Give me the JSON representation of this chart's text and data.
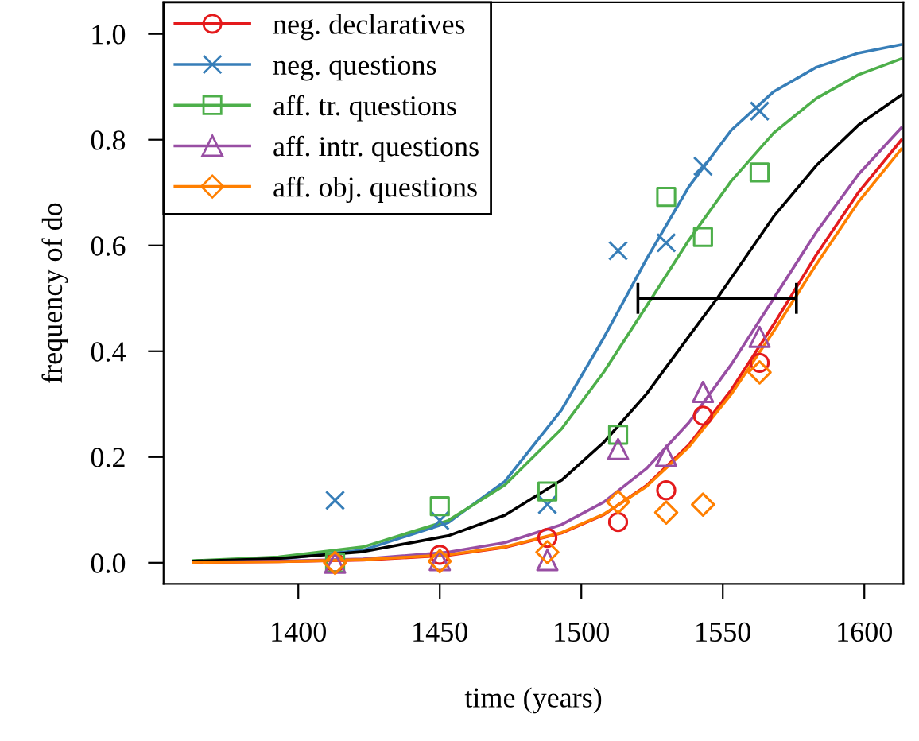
{
  "chart_data": {
    "type": "scatter",
    "xlabel": "time (years)",
    "ylabel": "frequency of do",
    "xlim": [
      1352.4,
      1613.8
    ],
    "ylim": [
      -0.04,
      1.06
    ],
    "xticks": [
      1400,
      1450,
      1500,
      1550,
      1600
    ],
    "yticks": [
      {
        "value": 0,
        "label": "0.0"
      },
      {
        "value": 0.2,
        "label": "0.2"
      },
      {
        "value": 0.4,
        "label": "0.4"
      },
      {
        "value": 0.6,
        "label": "0.6"
      },
      {
        "value": 0.8,
        "label": "0.8"
      },
      {
        "value": 1.0,
        "label": "1.0"
      }
    ],
    "grid": false,
    "legend": "top left",
    "series": [
      {
        "type": "line",
        "color": "#377eb8",
        "marker": "none",
        "x": [
          1363,
          1393,
          1423,
          1453,
          1473,
          1493,
          1508,
          1523,
          1538,
          1553,
          1568,
          1583,
          1598,
          1613
        ],
        "values": [
          0.002,
          0.007,
          0.024,
          0.076,
          0.154,
          0.289,
          0.426,
          0.574,
          0.711,
          0.818,
          0.891,
          0.937,
          0.964,
          0.98
        ]
      },
      {
        "type": "line",
        "color": "#4daf4a",
        "marker": "none",
        "x": [
          1363,
          1393,
          1423,
          1453,
          1473,
          1493,
          1508,
          1523,
          1538,
          1553,
          1568,
          1583,
          1598,
          1613
        ],
        "values": [
          0.004,
          0.011,
          0.03,
          0.08,
          0.147,
          0.253,
          0.361,
          0.485,
          0.61,
          0.722,
          0.813,
          0.878,
          0.923,
          0.953
        ]
      },
      {
        "type": "line",
        "color": "#000000",
        "marker": "none",
        "x": [
          1363,
          1393,
          1423,
          1453,
          1473,
          1493,
          1508,
          1523,
          1538,
          1548,
          1568,
          1583,
          1598,
          1613
        ],
        "values": [
          0.003,
          0.008,
          0.021,
          0.051,
          0.09,
          0.156,
          0.228,
          0.319,
          0.428,
          0.5,
          0.655,
          0.751,
          0.828,
          0.884
        ],
        "xerrors": [
          null,
          null,
          null,
          null,
          null,
          null,
          null,
          null,
          null,
          [
            1520,
            1576
          ],
          null,
          null,
          null,
          null
        ]
      },
      {
        "type": "line",
        "color": "#984ea3",
        "marker": "none",
        "x": [
          1363,
          1393,
          1423,
          1453,
          1473,
          1493,
          1508,
          1523,
          1538,
          1553,
          1568,
          1583,
          1598,
          1613
        ],
        "values": [
          0.001,
          0.003,
          0.007,
          0.02,
          0.038,
          0.072,
          0.115,
          0.178,
          0.265,
          0.375,
          0.5,
          0.625,
          0.735,
          0.822
        ]
      },
      {
        "type": "line",
        "color": "#e41a1c",
        "marker": "none",
        "x": [
          1363,
          1393,
          1423,
          1453,
          1473,
          1493,
          1508,
          1523,
          1538,
          1553,
          1568,
          1583,
          1598,
          1613
        ],
        "values": [
          0.001,
          0.002,
          0.005,
          0.014,
          0.029,
          0.056,
          0.091,
          0.146,
          0.223,
          0.327,
          0.451,
          0.582,
          0.701,
          0.799
        ]
      },
      {
        "type": "line",
        "color": "#ff7f00",
        "marker": "none",
        "x": [
          1363,
          1393,
          1423,
          1453,
          1473,
          1493,
          1508,
          1523,
          1538,
          1553,
          1568,
          1583,
          1598,
          1613
        ],
        "values": [
          0.001,
          0.002,
          0.006,
          0.015,
          0.03,
          0.057,
          0.092,
          0.144,
          0.219,
          0.319,
          0.438,
          0.564,
          0.683,
          0.782
        ]
      },
      {
        "name": "neg. declaratives",
        "color": "#e41a1c",
        "marker": "circle",
        "x": [
          1413,
          1450,
          1488,
          1513,
          1530,
          1543,
          1563
        ],
        "values": [
          0.0,
          0.015,
          0.047,
          0.077,
          0.137,
          0.278,
          0.378
        ]
      },
      {
        "name": "neg. questions",
        "color": "#377eb8",
        "marker": "cross",
        "x": [
          1413,
          1450,
          1488,
          1513,
          1530,
          1543,
          1563
        ],
        "values": [
          0.118,
          0.08,
          0.11,
          0.59,
          0.605,
          0.75,
          0.854
        ]
      },
      {
        "name": "aff. tr. questions",
        "color": "#4daf4a",
        "marker": "square",
        "x": [
          1413,
          1450,
          1488,
          1513,
          1530,
          1543,
          1563
        ],
        "values": [
          0.0,
          0.107,
          0.135,
          0.242,
          0.692,
          0.616,
          0.738
        ]
      },
      {
        "name": "aff. intr. questions",
        "color": "#984ea3",
        "marker": "triangle",
        "x": [
          1413,
          1450,
          1488,
          1513,
          1530,
          1543,
          1563
        ],
        "values": [
          0.0,
          0.005,
          0.005,
          0.215,
          0.202,
          0.323,
          0.427
        ]
      },
      {
        "name": "aff. obj. questions",
        "color": "#ff7f00",
        "marker": "diamond",
        "x": [
          1413,
          1450,
          1488,
          1513,
          1530,
          1543,
          1563
        ],
        "values": [
          0.0,
          0.003,
          0.02,
          0.115,
          0.095,
          0.11,
          0.36
        ]
      }
    ]
  }
}
